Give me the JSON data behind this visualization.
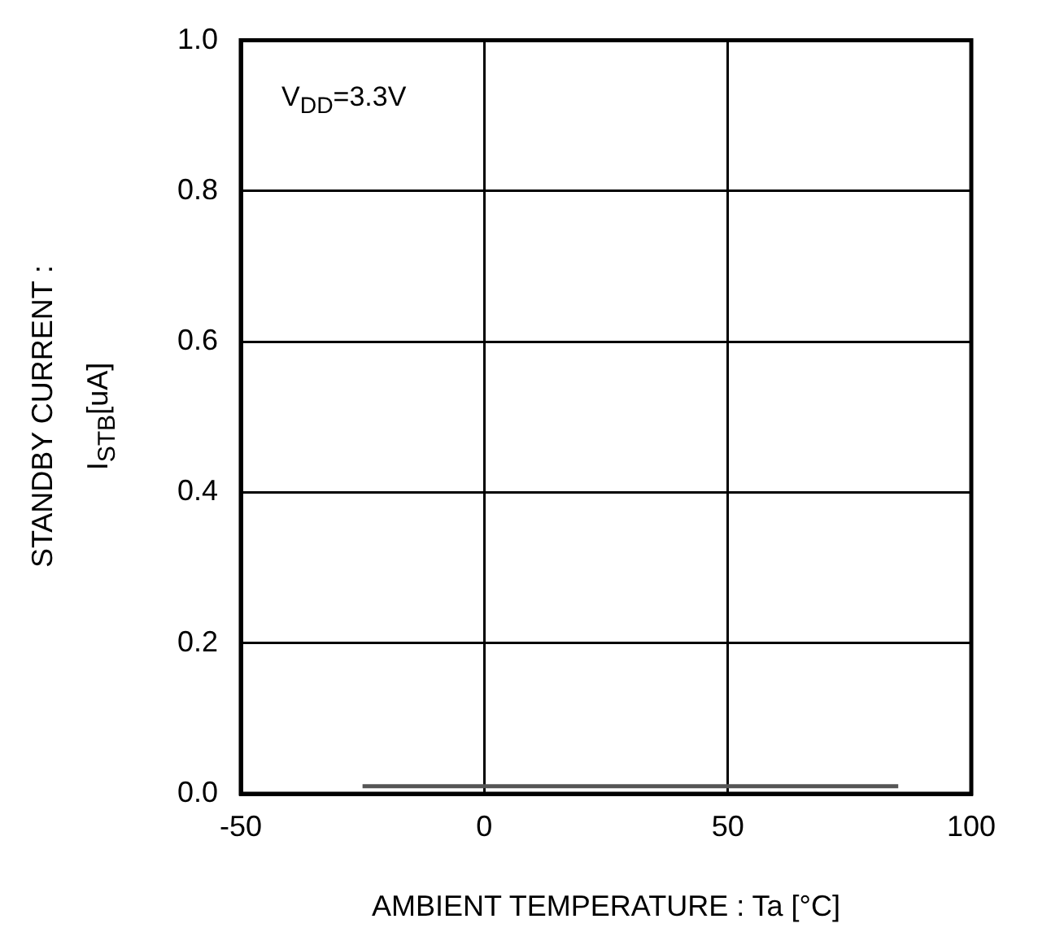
{
  "chart_data": {
    "type": "line",
    "xlabel": "AMBIENT TEMPERATURE : Ta [°C]",
    "ylabel": "STANDBY CURRENT :\nI$_{STB}$[uA]",
    "annotations": [
      "V$_{DD}$=3.3V"
    ],
    "x": [
      -25,
      85
    ],
    "series": [
      {
        "color": "#555555",
        "values": [
          0.01,
          0.01
        ]
      }
    ],
    "xlim": [
      -50,
      100
    ],
    "xticks": [
      -50,
      0,
      50,
      100
    ],
    "ylim": [
      0,
      1
    ],
    "yticks": [
      {
        "value": 0,
        "label": "0.0"
      },
      {
        "value": 0.2,
        "label": "0.2"
      },
      {
        "value": 0.4,
        "label": "0.4"
      },
      {
        "value": 0.6,
        "label": "0.6"
      },
      {
        "value": 0.8,
        "label": "0.8"
      },
      {
        "value": 1,
        "label": "1.0"
      }
    ],
    "grid": true,
    "legend": false,
    "marker": "none",
    "line_style": "solid"
  }
}
